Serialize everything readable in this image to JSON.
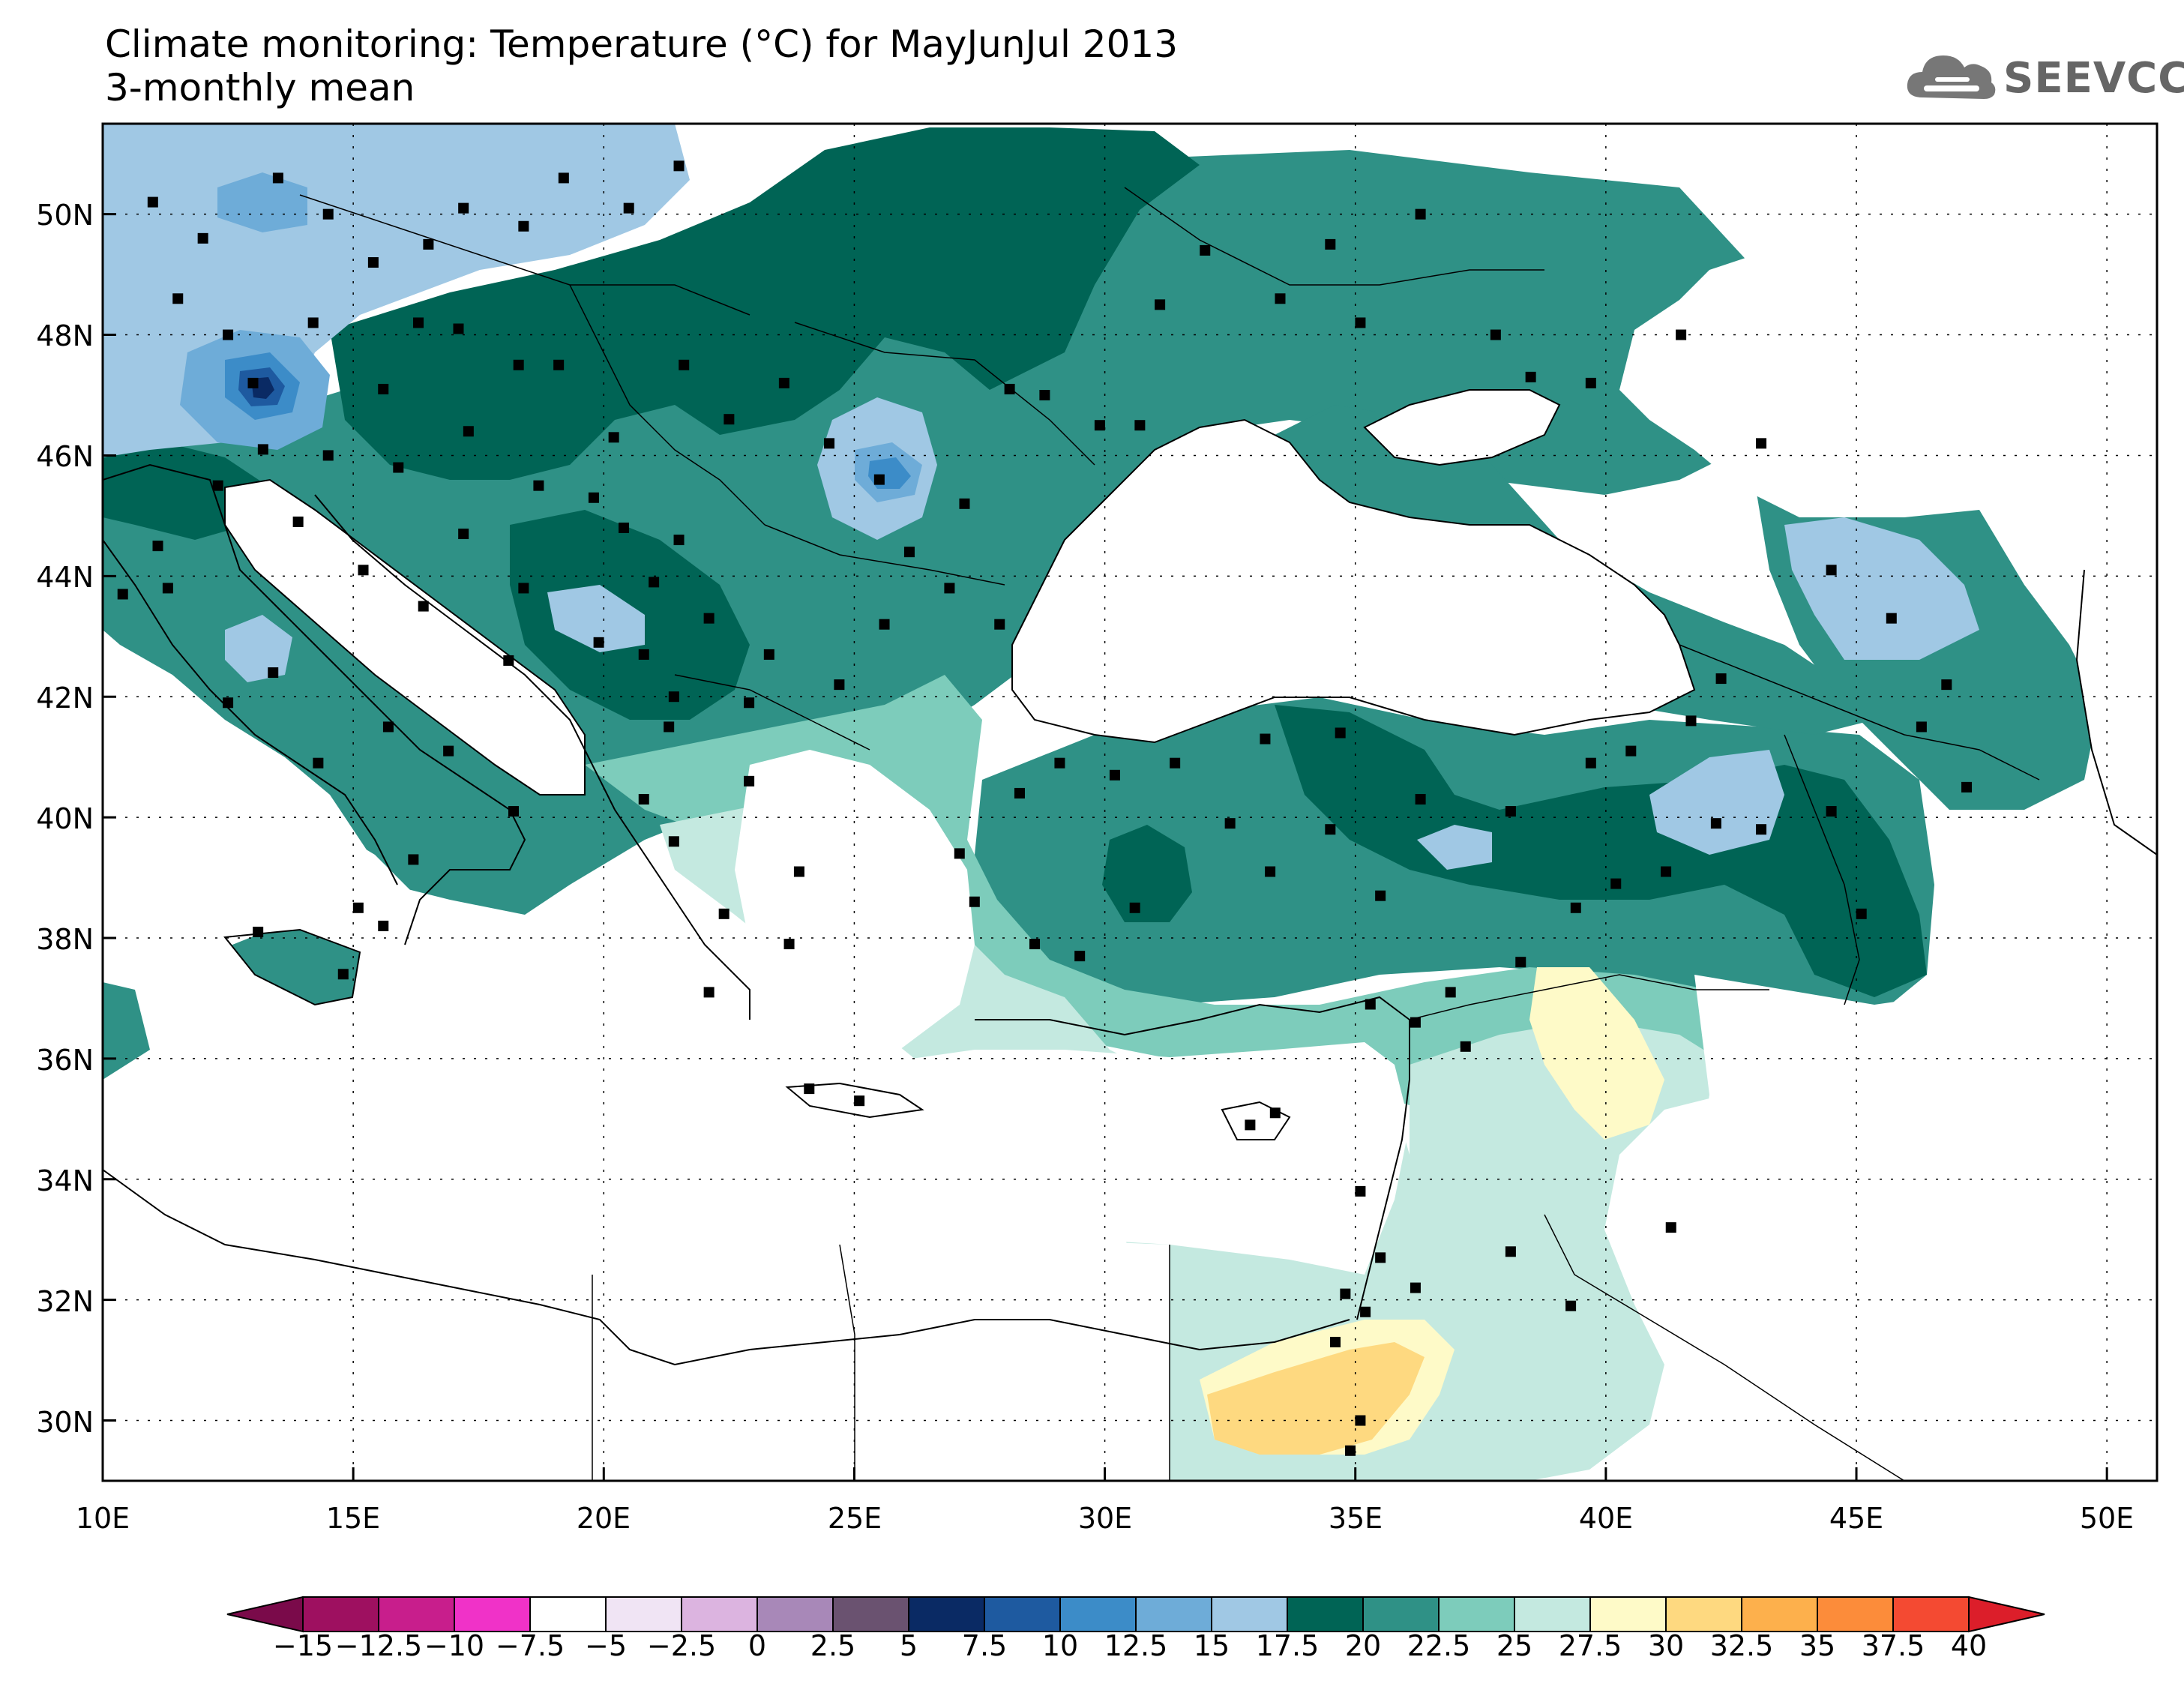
{
  "title": {
    "line1": "Climate monitoring: Temperature (°C) for MayJunJul 2013",
    "line2": "3-monthly mean"
  },
  "logo": {
    "text": "SEEVCCC",
    "icon": "cloud-icon"
  },
  "map": {
    "lon_range": [
      10,
      51
    ],
    "lat_range": [
      29,
      51.5
    ],
    "x_ticks": [
      "10E",
      "15E",
      "20E",
      "25E",
      "30E",
      "35E",
      "40E",
      "45E",
      "50E"
    ],
    "y_ticks": [
      "30N",
      "32N",
      "34N",
      "36N",
      "38N",
      "40N",
      "42N",
      "44N",
      "46N",
      "48N",
      "50N"
    ],
    "grid": "dotted"
  },
  "colorbar": {
    "labels": [
      "−15",
      "−12.5",
      "−10",
      "−7.5",
      "−5",
      "−2.5",
      "0",
      "2.5",
      "5",
      "7.5",
      "10",
      "12.5",
      "15",
      "17.5",
      "20",
      "22.5",
      "25",
      "27.5",
      "30",
      "32.5",
      "35",
      "37.5",
      "40"
    ],
    "colors": [
      "#7a0a4a",
      "#9e1060",
      "#c81e8c",
      "#f032c8",
      "#ffffff",
      "#f0e4f4",
      "#dcb4e0",
      "#a888b8",
      "#6a5270",
      "#0a2a64",
      "#1e5aa0",
      "#3c8cc8",
      "#6eacd8",
      "#a0c8e4",
      "#006455",
      "#2f9186",
      "#7dccbb",
      "#c4e9e0",
      "#fefac8",
      "#fed980",
      "#fdb04c",
      "#fc8c3a",
      "#f44a32",
      "#dc1e2a"
    ]
  }
}
